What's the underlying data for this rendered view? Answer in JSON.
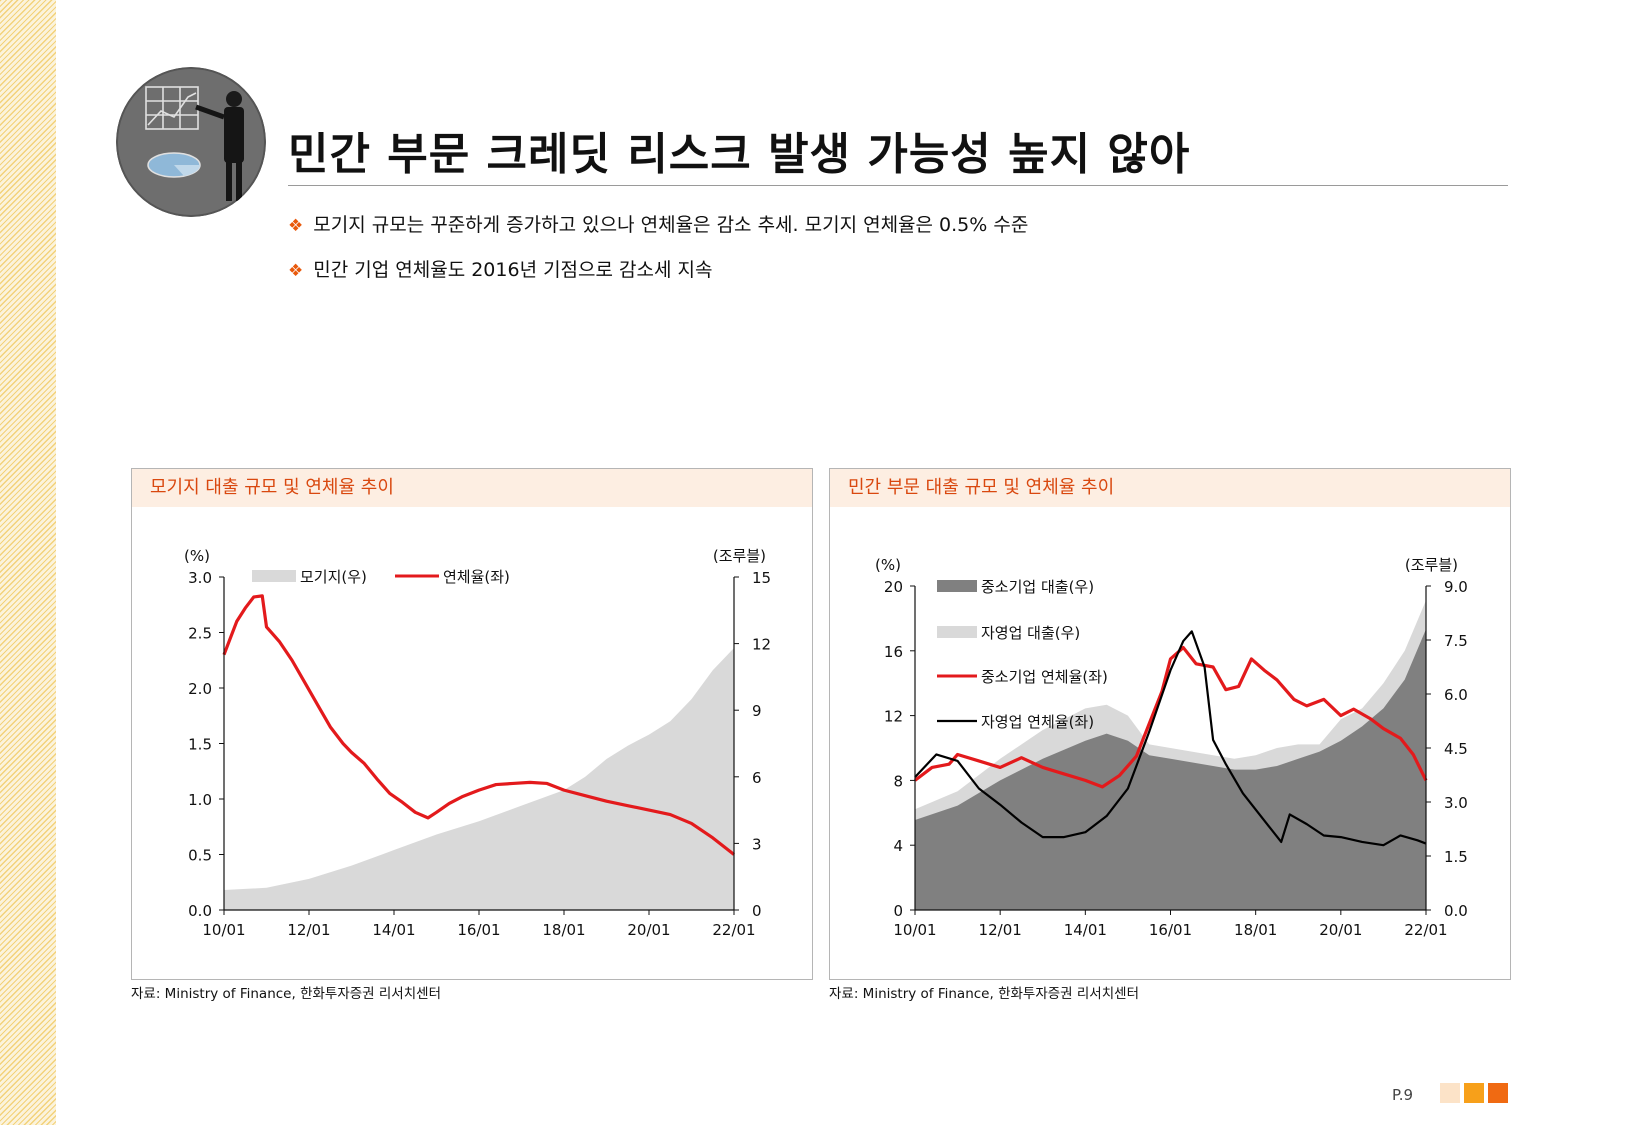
{
  "title": "민간 부문 크레딧 리스크 발생 가능성 높지 않아",
  "bullets": [
    "모기지 규모는 꾸준하게 증가하고 있으나 연체율은 감소 추세. 모기지 연체율은 0.5% 수준",
    "민간 기업 연체율도 2016년 기점으로 감소세 지속"
  ],
  "bullet_marker": "❖",
  "page_number": "P.9",
  "colors": {
    "accent": "#e8590c",
    "header_bg": "#fdeee2",
    "header_text": "#d9480f",
    "red_line": "#e31a1c",
    "light_area": "#d9d9d9",
    "dark_area": "#808080"
  },
  "chart1_header": "모기지 대출 규모 및 연체율 추이",
  "chart1_source": "자료: Ministry of Finance, 한화투자증권 리서치센터",
  "chart2_header": "민간 부문 대출 규모 및 연체율 추이",
  "chart2_source": "자료: Ministry of Finance, 한화투자증권 리서치센터",
  "chart_data": [
    {
      "type": "area+line",
      "title": "모기지 대출 규모 및 연체율 추이",
      "left_unit": "(%)",
      "right_unit": "(조루블)",
      "left_ylim": [
        0,
        3.0
      ],
      "right_ylim": [
        0,
        15
      ],
      "left_ticks": [
        "0.0",
        "0.5",
        "1.0",
        "1.5",
        "2.0",
        "2.5",
        "3.0"
      ],
      "right_ticks": [
        "0",
        "3",
        "6",
        "9",
        "12",
        "15"
      ],
      "x_ticks": [
        "10/01",
        "12/01",
        "14/01",
        "16/01",
        "18/01",
        "20/01",
        "22/01"
      ],
      "x_range": [
        2010.0,
        2022.0
      ],
      "series": [
        {
          "name": "모기지(우)",
          "kind": "area",
          "axis": "right",
          "color": "#d9d9d9",
          "points": [
            [
              2010.0,
              0.9
            ],
            [
              2011.0,
              1.0
            ],
            [
              2012.0,
              1.4
            ],
            [
              2013.0,
              2.0
            ],
            [
              2014.0,
              2.7
            ],
            [
              2015.0,
              3.4
            ],
            [
              2016.0,
              4.0
            ],
            [
              2017.0,
              4.7
            ],
            [
              2018.0,
              5.4
            ],
            [
              2018.5,
              6.0
            ],
            [
              2019.0,
              6.8
            ],
            [
              2019.5,
              7.4
            ],
            [
              2020.0,
              7.9
            ],
            [
              2020.5,
              8.5
            ],
            [
              2021.0,
              9.5
            ],
            [
              2021.5,
              10.8
            ],
            [
              2022.0,
              11.8
            ]
          ]
        },
        {
          "name": "연체율(좌)",
          "kind": "line",
          "axis": "left",
          "color": "#e31a1c",
          "points": [
            [
              2010.0,
              2.3
            ],
            [
              2010.3,
              2.6
            ],
            [
              2010.5,
              2.72
            ],
            [
              2010.7,
              2.82
            ],
            [
              2010.9,
              2.83
            ],
            [
              2011.0,
              2.55
            ],
            [
              2011.3,
              2.42
            ],
            [
              2011.6,
              2.25
            ],
            [
              2011.9,
              2.05
            ],
            [
              2012.2,
              1.85
            ],
            [
              2012.5,
              1.65
            ],
            [
              2012.8,
              1.5
            ],
            [
              2013.0,
              1.42
            ],
            [
              2013.3,
              1.32
            ],
            [
              2013.6,
              1.18
            ],
            [
              2013.9,
              1.05
            ],
            [
              2014.2,
              0.97
            ],
            [
              2014.5,
              0.88
            ],
            [
              2014.8,
              0.83
            ],
            [
              2015.0,
              0.88
            ],
            [
              2015.3,
              0.96
            ],
            [
              2015.6,
              1.02
            ],
            [
              2016.0,
              1.08
            ],
            [
              2016.4,
              1.13
            ],
            [
              2016.8,
              1.14
            ],
            [
              2017.2,
              1.15
            ],
            [
              2017.6,
              1.14
            ],
            [
              2018.0,
              1.08
            ],
            [
              2018.5,
              1.03
            ],
            [
              2019.0,
              0.98
            ],
            [
              2019.5,
              0.94
            ],
            [
              2020.0,
              0.9
            ],
            [
              2020.5,
              0.86
            ],
            [
              2021.0,
              0.78
            ],
            [
              2021.5,
              0.65
            ],
            [
              2022.0,
              0.5
            ]
          ]
        }
      ]
    },
    {
      "type": "area+line",
      "title": "민간 부문 대출 규모 및 연체율 추이",
      "left_unit": "(%)",
      "right_unit": "(조루블)",
      "left_ylim": [
        0,
        20
      ],
      "right_ylim": [
        0,
        9.0
      ],
      "left_ticks": [
        "0",
        "4",
        "8",
        "12",
        "16",
        "20"
      ],
      "right_ticks": [
        "0.0",
        "1.5",
        "3.0",
        "4.5",
        "6.0",
        "7.5",
        "9.0"
      ],
      "x_ticks": [
        "10/01",
        "12/01",
        "14/01",
        "16/01",
        "18/01",
        "20/01",
        "22/01"
      ],
      "x_range": [
        2010.0,
        2022.0
      ],
      "series": [
        {
          "name": "자영업 대출(우)",
          "kind": "area",
          "axis": "right",
          "color": "#d9d9d9",
          "points": [
            [
              2010.0,
              2.8
            ],
            [
              2011.0,
              3.3
            ],
            [
              2012.0,
              4.2
            ],
            [
              2013.0,
              5.0
            ],
            [
              2014.0,
              5.6
            ],
            [
              2014.5,
              5.7
            ],
            [
              2015.0,
              5.4
            ],
            [
              2015.5,
              4.6
            ],
            [
              2016.0,
              4.5
            ],
            [
              2016.5,
              4.4
            ],
            [
              2017.0,
              4.3
            ],
            [
              2017.5,
              4.2
            ],
            [
              2018.0,
              4.3
            ],
            [
              2018.5,
              4.5
            ],
            [
              2019.0,
              4.6
            ],
            [
              2019.5,
              4.6
            ],
            [
              2020.0,
              5.3
            ],
            [
              2020.5,
              5.6
            ],
            [
              2021.0,
              6.3
            ],
            [
              2021.5,
              7.2
            ],
            [
              2022.0,
              8.6
            ]
          ]
        },
        {
          "name": "중소기업 대출(우)",
          "kind": "area",
          "axis": "right",
          "color": "#808080",
          "points": [
            [
              2010.0,
              2.5
            ],
            [
              2011.0,
              2.9
            ],
            [
              2012.0,
              3.6
            ],
            [
              2013.0,
              4.2
            ],
            [
              2014.0,
              4.7
            ],
            [
              2014.5,
              4.9
            ],
            [
              2015.0,
              4.7
            ],
            [
              2015.5,
              4.3
            ],
            [
              2016.0,
              4.2
            ],
            [
              2016.5,
              4.1
            ],
            [
              2017.0,
              4.0
            ],
            [
              2017.5,
              3.9
            ],
            [
              2018.0,
              3.9
            ],
            [
              2018.5,
              4.0
            ],
            [
              2019.0,
              4.2
            ],
            [
              2019.5,
              4.4
            ],
            [
              2020.0,
              4.7
            ],
            [
              2020.5,
              5.1
            ],
            [
              2021.0,
              5.6
            ],
            [
              2021.5,
              6.4
            ],
            [
              2022.0,
              7.8
            ]
          ]
        },
        {
          "name": "중소기업 연체율(좌)",
          "kind": "line",
          "axis": "left",
          "color": "#e31a1c",
          "points": [
            [
              2010.0,
              8.0
            ],
            [
              2010.4,
              8.8
            ],
            [
              2010.8,
              9.0
            ],
            [
              2011.0,
              9.6
            ],
            [
              2011.5,
              9.2
            ],
            [
              2012.0,
              8.8
            ],
            [
              2012.5,
              9.4
            ],
            [
              2013.0,
              8.8
            ],
            [
              2013.5,
              8.4
            ],
            [
              2014.0,
              8.0
            ],
            [
              2014.4,
              7.6
            ],
            [
              2014.8,
              8.3
            ],
            [
              2015.2,
              9.5
            ],
            [
              2015.5,
              11.5
            ],
            [
              2015.8,
              13.5
            ],
            [
              2016.0,
              15.5
            ],
            [
              2016.3,
              16.2
            ],
            [
              2016.6,
              15.2
            ],
            [
              2017.0,
              15.0
            ],
            [
              2017.3,
              13.6
            ],
            [
              2017.6,
              13.8
            ],
            [
              2017.9,
              15.5
            ],
            [
              2018.2,
              14.8
            ],
            [
              2018.5,
              14.2
            ],
            [
              2018.9,
              13.0
            ],
            [
              2019.2,
              12.6
            ],
            [
              2019.6,
              13.0
            ],
            [
              2020.0,
              12.0
            ],
            [
              2020.3,
              12.4
            ],
            [
              2020.7,
              11.8
            ],
            [
              2021.0,
              11.2
            ],
            [
              2021.4,
              10.6
            ],
            [
              2021.7,
              9.6
            ],
            [
              2022.0,
              8.0
            ]
          ]
        },
        {
          "name": "자영업 연체율(좌)",
          "kind": "line",
          "axis": "left",
          "color": "#000000",
          "points": [
            [
              2010.0,
              8.2
            ],
            [
              2010.5,
              9.6
            ],
            [
              2011.0,
              9.2
            ],
            [
              2011.5,
              7.5
            ],
            [
              2012.0,
              6.5
            ],
            [
              2012.5,
              5.4
            ],
            [
              2013.0,
              4.5
            ],
            [
              2013.5,
              4.5
            ],
            [
              2014.0,
              4.8
            ],
            [
              2014.5,
              5.8
            ],
            [
              2015.0,
              7.5
            ],
            [
              2015.5,
              11.0
            ],
            [
              2016.0,
              14.8
            ],
            [
              2016.3,
              16.6
            ],
            [
              2016.5,
              17.2
            ],
            [
              2016.8,
              15.0
            ],
            [
              2017.0,
              10.5
            ],
            [
              2017.3,
              9.0
            ],
            [
              2017.7,
              7.2
            ],
            [
              2018.0,
              6.2
            ],
            [
              2018.3,
              5.2
            ],
            [
              2018.6,
              4.2
            ],
            [
              2018.8,
              5.9
            ],
            [
              2019.2,
              5.3
            ],
            [
              2019.6,
              4.6
            ],
            [
              2020.0,
              4.5
            ],
            [
              2020.5,
              4.2
            ],
            [
              2021.0,
              4.0
            ],
            [
              2021.4,
              4.6
            ],
            [
              2021.8,
              4.3
            ],
            [
              2022.0,
              4.1
            ]
          ]
        }
      ]
    }
  ]
}
